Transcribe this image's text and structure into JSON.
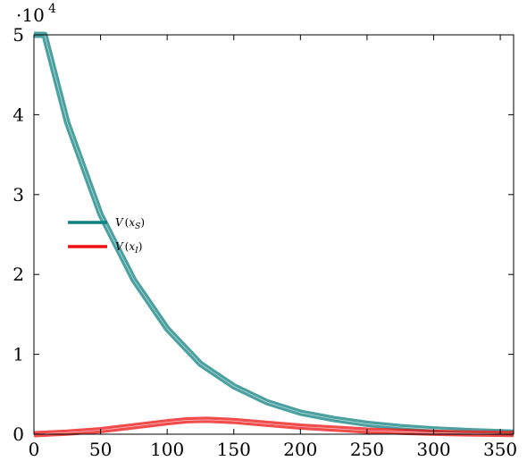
{
  "chart_data": {
    "type": "line",
    "title": "",
    "xlabel": "",
    "ylabel": "",
    "xlim": [
      0,
      360
    ],
    "ylim": [
      0,
      50000
    ],
    "x_ticks": [
      0,
      50,
      100,
      150,
      200,
      250,
      300,
      350
    ],
    "y_ticks": [
      0,
      1,
      2,
      3,
      4,
      5
    ],
    "y_multiplier": {
      "base": "·10",
      "exponent": "4"
    },
    "grid": false,
    "legend_position": "middle-left",
    "series": [
      {
        "name": "V(x_S)",
        "legend_main": "V",
        "legend_var": "x",
        "legend_sub": "S",
        "color": "#0f8080",
        "x": [
          0,
          8,
          25,
          50,
          75,
          100,
          125,
          150,
          175,
          200,
          225,
          250,
          275,
          300,
          325,
          360
        ],
        "values": [
          50000,
          50000,
          39000,
          27500,
          19300,
          13200,
          8800,
          6000,
          4000,
          2700,
          1900,
          1300,
          900,
          600,
          400,
          200
        ]
      },
      {
        "name": "V(x_I)",
        "legend_main": "V",
        "legend_var": "x",
        "legend_sub": "I",
        "color": "#ee1111",
        "x": [
          0,
          25,
          50,
          75,
          100,
          115,
          130,
          150,
          175,
          200,
          225,
          250,
          275,
          300,
          325,
          360
        ],
        "values": [
          0,
          200,
          500,
          1000,
          1500,
          1750,
          1800,
          1650,
          1300,
          950,
          700,
          450,
          300,
          180,
          100,
          30
        ]
      }
    ]
  }
}
